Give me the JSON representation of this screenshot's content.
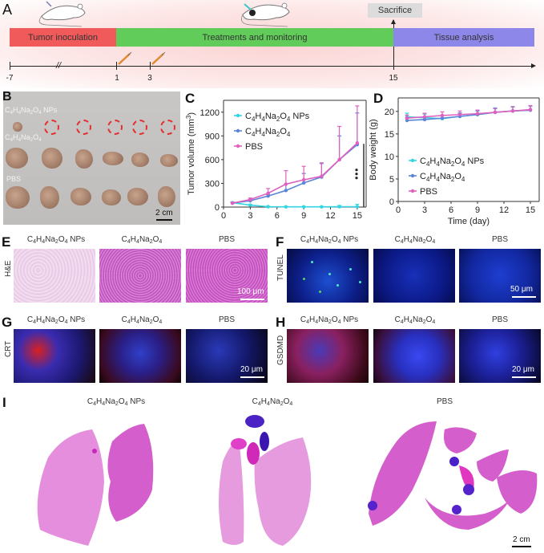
{
  "figure": {
    "panels": [
      "A",
      "B",
      "C",
      "D",
      "E",
      "F",
      "G",
      "H",
      "I"
    ]
  },
  "panelA": {
    "letter": "A",
    "phases": [
      {
        "label": "Tumor inoculation",
        "color": "#f05a5a"
      },
      {
        "label": "Treatments and monitoring",
        "color": "#62cc5a"
      },
      {
        "label": "Tissue analysis",
        "color": "#8e87ea"
      }
    ],
    "sacrifice_label": "Sacrifice",
    "timeline_ticks": [
      "-7",
      "1",
      "3",
      "15"
    ],
    "icons": [
      "mouse-icon",
      "mouse-with-tumor-icon",
      "syringe-icon",
      "syringe-icon"
    ]
  },
  "panelB": {
    "letter": "B",
    "row_labels": [
      "C4H4Na2O4 NPs",
      "C4H4Na2O4",
      "PBS"
    ],
    "row_label_parts": [
      {
        "a": "C",
        "s1": "4",
        "b": "H",
        "s2": "4",
        "c": "Na",
        "s3": "2",
        "d": "O",
        "s4": "4",
        "e": " NPs"
      },
      {
        "a": "C",
        "s1": "4",
        "b": "H",
        "s2": "4",
        "c": "Na",
        "s3": "2",
        "d": "O",
        "s4": "4",
        "e": ""
      }
    ],
    "pbs_label": "PBS",
    "scale_bar": "2 cm",
    "tumors_per_row": 6,
    "missing_marker_color": "#e23030"
  },
  "legend_parts": {
    "nps": {
      "a": "C",
      "s1": "4",
      "b": "H",
      "s2": "4",
      "c": "Na",
      "s3": "2",
      "d": "O",
      "s4": "4",
      "e": " NPs"
    },
    "salt": {
      "a": "C",
      "s1": "4",
      "b": "H",
      "s2": "4",
      "c": "Na",
      "s3": "2",
      "d": "O",
      "s4": "4",
      "e": ""
    },
    "pbs": "PBS"
  },
  "chart_data": [
    {
      "panel": "C",
      "type": "line",
      "title": "",
      "xlabel": "",
      "ylabel": "Tumor volume (mm3)",
      "x": [
        1,
        3,
        5,
        7,
        9,
        11,
        13,
        15
      ],
      "xticks": [
        0,
        3,
        6,
        9,
        12,
        15
      ],
      "yticks": [
        0,
        300,
        600,
        900,
        1200
      ],
      "xlim": [
        0,
        16
      ],
      "ylim": [
        0,
        1350
      ],
      "legend_position": "upper left",
      "series": [
        {
          "name": "C4H4Na2O4 NPs",
          "color": "#33d6e0",
          "values": [
            55,
            25,
            5,
            3,
            3,
            3,
            5,
            5
          ],
          "error": [
            10,
            8,
            5,
            3,
            3,
            3,
            15,
            30
          ]
        },
        {
          "name": "C4H4Na2O4",
          "color": "#5b86d6",
          "values": [
            50,
            80,
            140,
            210,
            305,
            380,
            600,
            790
          ],
          "error": [
            10,
            15,
            20,
            80,
            120,
            170,
            300,
            400
          ]
        },
        {
          "name": "PBS",
          "color": "#e060c0",
          "values": [
            50,
            95,
            175,
            290,
            345,
            390,
            600,
            810
          ],
          "error": [
            10,
            20,
            60,
            170,
            170,
            170,
            420,
            470
          ]
        }
      ],
      "annotation": "***",
      "grid": false
    },
    {
      "panel": "D",
      "type": "line",
      "title": "",
      "xlabel": "Time (day)",
      "ylabel": "Body weight (g)",
      "x": [
        1,
        3,
        5,
        7,
        9,
        11,
        13,
        15
      ],
      "xticks": [
        0,
        3,
        6,
        9,
        12,
        15
      ],
      "yticks": [
        0,
        5,
        10,
        15,
        20
      ],
      "xlim": [
        0,
        16
      ],
      "ylim": [
        0,
        23
      ],
      "legend_position": "center left",
      "series": [
        {
          "name": "C4H4Na2O4 NPs",
          "color": "#33d6e0",
          "values": [
            18.8,
            18.6,
            18.4,
            18.9,
            19.3,
            19.8,
            20.1,
            20.3
          ],
          "error": [
            0.8,
            0.8,
            0.7,
            0.8,
            0.9,
            1.0,
            1.0,
            1.0
          ]
        },
        {
          "name": "C4H4Na2O4",
          "color": "#5b86d6",
          "values": [
            18.0,
            18.2,
            18.5,
            18.9,
            19.3,
            19.8,
            20.1,
            20.3
          ],
          "error": [
            0.5,
            0.6,
            0.6,
            0.7,
            0.8,
            0.8,
            0.9,
            0.9
          ]
        },
        {
          "name": "PBS",
          "color": "#e060c0",
          "values": [
            18.5,
            18.8,
            19.1,
            19.3,
            19.5,
            19.8,
            20.1,
            20.4
          ],
          "error": [
            0.7,
            0.8,
            0.8,
            0.8,
            0.8,
            0.9,
            0.9,
            0.9
          ]
        }
      ],
      "grid": false
    }
  ],
  "panelE": {
    "letter": "E",
    "row_label": "H&E",
    "scale_bar": "100 μm"
  },
  "panelF": {
    "letter": "F",
    "row_label": "TUNEL",
    "scale_bar": "50 μm"
  },
  "panelG": {
    "letter": "G",
    "row_label": "CRT",
    "scale_bar": "20 μm"
  },
  "panelH": {
    "letter": "H",
    "row_label": "GSDMD",
    "scale_bar": "20 μm"
  },
  "panelI": {
    "letter": "I",
    "scale_bar": "2 cm",
    "pbs_label": "PBS"
  },
  "columns": {
    "pbs": "PBS"
  }
}
